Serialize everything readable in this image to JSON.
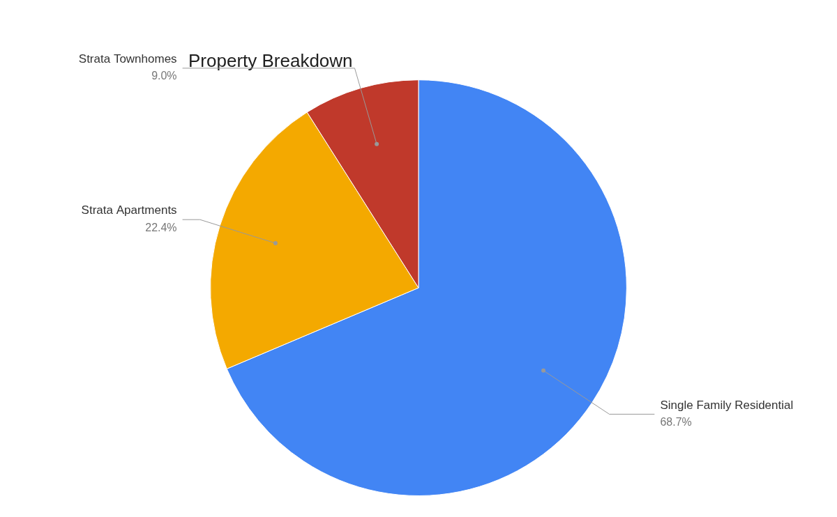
{
  "chart_data": {
    "type": "pie",
    "title": "Property Breakdown",
    "categories": [
      "Single Family Residential",
      "Strata Apartments",
      "Strata Townhomes"
    ],
    "values": [
      68.7,
      22.4,
      9.0
    ],
    "value_labels": [
      "68.7%",
      "22.4%",
      "9.0%"
    ],
    "colors": [
      "#4285F4",
      "#F4A900",
      "#C0392B"
    ],
    "data_labels": true,
    "legend": false
  }
}
